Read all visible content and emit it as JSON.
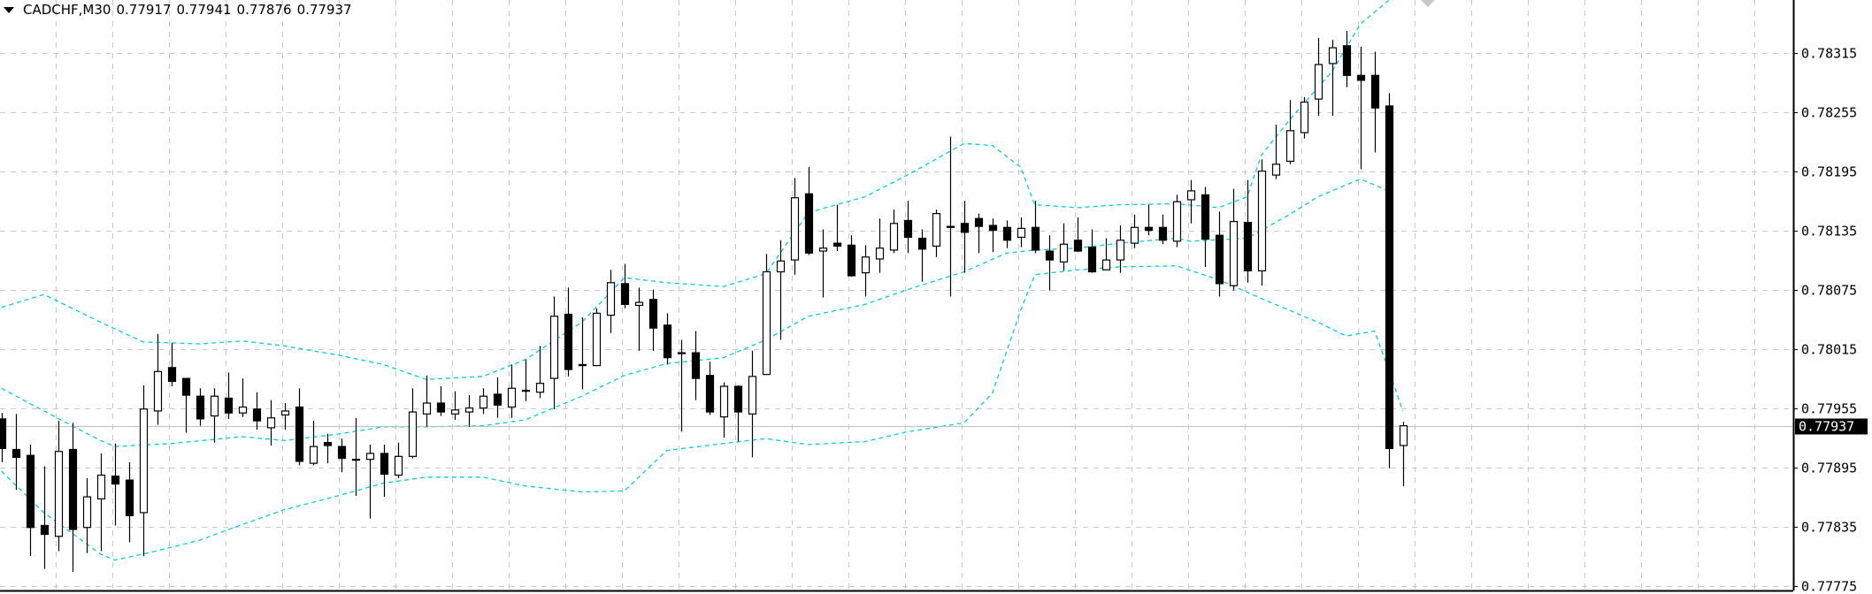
{
  "header": {
    "symbol_timeframe": "CADCHF,M30",
    "open": "0.77917",
    "high": "0.77941",
    "low": "0.77876",
    "close": "0.77937",
    "menu_icon": "triangle-down-icon"
  },
  "colors": {
    "background": "#ffffff",
    "grid": "#c8c8c8",
    "candle": "#000000",
    "bull_body": "#ffffff",
    "bear_body": "#000000",
    "bands": "#00d0d8",
    "price_line": "#c0c0c0",
    "price_label_bg": "#000000",
    "price_label_fg": "#ffffff"
  },
  "chart_data": {
    "type": "candlestick",
    "symbol": "CADCHF",
    "timeframe": "M30",
    "ylim": [
      0.77775,
      0.78345
    ],
    "grid": true,
    "y_ticks": [
      "0.78315",
      "0.78255",
      "0.78195",
      "0.78135",
      "0.78075",
      "0.78015",
      "0.77955",
      "0.77895",
      "0.77835",
      "0.77775"
    ],
    "current_price": "0.77937",
    "candles_ohlc": [
      [
        0.77944,
        0.7795,
        0.779,
        0.77914
      ],
      [
        0.77913,
        0.77949,
        0.77872,
        0.77905
      ],
      [
        0.77907,
        0.77918,
        0.77805,
        0.77834
      ],
      [
        0.77836,
        0.77896,
        0.77792,
        0.77827
      ],
      [
        0.77825,
        0.77942,
        0.7781,
        0.77911
      ],
      [
        0.77913,
        0.7794,
        0.77789,
        0.77832
      ],
      [
        0.77834,
        0.77884,
        0.77808,
        0.77865
      ],
      [
        0.77863,
        0.77909,
        0.7781,
        0.77887
      ],
      [
        0.77886,
        0.77919,
        0.77836,
        0.77878
      ],
      [
        0.77882,
        0.779,
        0.77819,
        0.77846
      ],
      [
        0.77849,
        0.77978,
        0.77805,
        0.77954
      ],
      [
        0.77952,
        0.7803,
        0.77938,
        0.77992
      ],
      [
        0.77996,
        0.78021,
        0.77977,
        0.77982
      ],
      [
        0.77985,
        0.77985,
        0.7793,
        0.77968
      ],
      [
        0.77967,
        0.77975,
        0.77937,
        0.77944
      ],
      [
        0.77947,
        0.77975,
        0.7792,
        0.77967
      ],
      [
        0.77965,
        0.77991,
        0.77944,
        0.7795
      ],
      [
        0.7795,
        0.77985,
        0.77946,
        0.77956
      ],
      [
        0.77954,
        0.77971,
        0.77933,
        0.77942
      ],
      [
        0.77935,
        0.77963,
        0.77917,
        0.77945
      ],
      [
        0.77948,
        0.7796,
        0.77933,
        0.77952
      ],
      [
        0.77956,
        0.77975,
        0.77897,
        0.77901
      ],
      [
        0.77899,
        0.77942,
        0.77897,
        0.77916
      ],
      [
        0.7792,
        0.77929,
        0.77899,
        0.77917
      ],
      [
        0.77916,
        0.77924,
        0.7789,
        0.77904
      ],
      [
        0.77903,
        0.77945,
        0.77866,
        0.77903
      ],
      [
        0.77903,
        0.77918,
        0.77843,
        0.77909
      ],
      [
        0.77909,
        0.77918,
        0.77865,
        0.77888
      ],
      [
        0.77887,
        0.7792,
        0.77884,
        0.77906
      ],
      [
        0.77906,
        0.77975,
        0.77904,
        0.77951
      ],
      [
        0.77949,
        0.77988,
        0.77936,
        0.7796
      ],
      [
        0.7796,
        0.77977,
        0.77947,
        0.77951
      ],
      [
        0.77949,
        0.77972,
        0.77943,
        0.77953
      ],
      [
        0.77951,
        0.77968,
        0.77936,
        0.77955
      ],
      [
        0.77955,
        0.77975,
        0.77949,
        0.77967
      ],
      [
        0.77969,
        0.77986,
        0.77945,
        0.77958
      ],
      [
        0.77956,
        0.77999,
        0.77945,
        0.77975
      ],
      [
        0.77973,
        0.78004,
        0.77962,
        0.77972
      ],
      [
        0.77971,
        0.78018,
        0.77965,
        0.7798
      ],
      [
        0.77985,
        0.78068,
        0.77954,
        0.78048
      ],
      [
        0.7805,
        0.78077,
        0.77987,
        0.77994
      ],
      [
        0.77999,
        0.78047,
        0.77974,
        0.77998
      ],
      [
        0.77998,
        0.78056,
        0.77998,
        0.78051
      ],
      [
        0.78049,
        0.78095,
        0.78031,
        0.78082
      ],
      [
        0.78081,
        0.78101,
        0.78056,
        0.7806
      ],
      [
        0.78059,
        0.78077,
        0.78013,
        0.78062
      ],
      [
        0.78065,
        0.78075,
        0.78013,
        0.78036
      ],
      [
        0.78039,
        0.78051,
        0.77999,
        0.78006
      ],
      [
        0.78011,
        0.78024,
        0.77931,
        0.78011
      ],
      [
        0.78011,
        0.78033,
        0.77963,
        0.77985
      ],
      [
        0.77988,
        0.78002,
        0.77948,
        0.77951
      ],
      [
        0.77946,
        0.77981,
        0.77925,
        0.77977
      ],
      [
        0.77977,
        0.77978,
        0.77921,
        0.77951
      ],
      [
        0.77949,
        0.78013,
        0.77905,
        0.77987
      ],
      [
        0.77989,
        0.78111,
        0.77989,
        0.78093
      ],
      [
        0.78093,
        0.78125,
        0.78024,
        0.78104
      ],
      [
        0.78105,
        0.78188,
        0.7809,
        0.78168
      ],
      [
        0.78172,
        0.78199,
        0.7811,
        0.78112
      ],
      [
        0.78114,
        0.78136,
        0.78067,
        0.78117
      ],
      [
        0.78122,
        0.78161,
        0.78114,
        0.78119
      ],
      [
        0.7812,
        0.7813,
        0.78088,
        0.78089
      ],
      [
        0.78092,
        0.7812,
        0.78068,
        0.78108
      ],
      [
        0.78106,
        0.78147,
        0.78092,
        0.78117
      ],
      [
        0.78115,
        0.78156,
        0.78112,
        0.78142
      ],
      [
        0.78145,
        0.78165,
        0.78112,
        0.78128
      ],
      [
        0.78127,
        0.78136,
        0.78083,
        0.78116
      ],
      [
        0.78119,
        0.78156,
        0.78108,
        0.78152
      ],
      [
        0.78139,
        0.7823,
        0.78068,
        0.78138
      ],
      [
        0.78142,
        0.78165,
        0.78092,
        0.78133
      ],
      [
        0.78147,
        0.78152,
        0.78112,
        0.78139
      ],
      [
        0.7814,
        0.78147,
        0.78113,
        0.78135
      ],
      [
        0.78138,
        0.78145,
        0.78117,
        0.78125
      ],
      [
        0.78128,
        0.78148,
        0.78118,
        0.78137
      ],
      [
        0.78138,
        0.78165,
        0.78112,
        0.78115
      ],
      [
        0.78114,
        0.7813,
        0.78074,
        0.78105
      ],
      [
        0.78103,
        0.78142,
        0.78094,
        0.78121
      ],
      [
        0.78125,
        0.78148,
        0.78113,
        0.78114
      ],
      [
        0.78118,
        0.78136,
        0.78092,
        0.78093
      ],
      [
        0.78095,
        0.78127,
        0.78095,
        0.78105
      ],
      [
        0.78105,
        0.7814,
        0.78092,
        0.78125
      ],
      [
        0.78122,
        0.78151,
        0.78117,
        0.78138
      ],
      [
        0.78138,
        0.78161,
        0.7813,
        0.78135
      ],
      [
        0.78138,
        0.78151,
        0.78121,
        0.78125
      ],
      [
        0.78124,
        0.78171,
        0.78118,
        0.78164
      ],
      [
        0.78166,
        0.78186,
        0.78142,
        0.78175
      ],
      [
        0.78171,
        0.78179,
        0.78098,
        0.78126
      ],
      [
        0.7813,
        0.78154,
        0.78068,
        0.78081
      ],
      [
        0.78079,
        0.78177,
        0.78074,
        0.78144
      ],
      [
        0.78143,
        0.78186,
        0.78082,
        0.78094
      ],
      [
        0.78094,
        0.78207,
        0.78079,
        0.78195
      ],
      [
        0.78191,
        0.78242,
        0.78187,
        0.78202
      ],
      [
        0.78205,
        0.78267,
        0.78202,
        0.78236
      ],
      [
        0.78234,
        0.7827,
        0.78228,
        0.78265
      ],
      [
        0.78268,
        0.7833,
        0.78251,
        0.78303
      ],
      [
        0.78304,
        0.78328,
        0.78251,
        0.7832
      ],
      [
        0.78322,
        0.78337,
        0.7828,
        0.78292
      ],
      [
        0.78292,
        0.78321,
        0.78197,
        0.78287
      ],
      [
        0.78292,
        0.78316,
        0.78214,
        0.78259
      ],
      [
        0.78261,
        0.78274,
        0.77894,
        0.77914
      ],
      [
        0.77917,
        0.77941,
        0.77876,
        0.77937
      ]
    ],
    "bollinger_bands": {
      "upper": [
        [
          0,
          0.78057
        ],
        [
          3,
          0.7807
        ],
        [
          7,
          0.78042
        ],
        [
          10,
          0.78022
        ],
        [
          14,
          0.7802
        ],
        [
          17,
          0.78023
        ],
        [
          20,
          0.78018
        ],
        [
          24,
          0.78008
        ],
        [
          27,
          0.77999
        ],
        [
          30,
          0.77984
        ],
        [
          34,
          0.77987
        ],
        [
          37,
          0.78004
        ],
        [
          41,
          0.78042
        ],
        [
          44,
          0.78087
        ],
        [
          47,
          0.78082
        ],
        [
          51,
          0.78078
        ],
        [
          54,
          0.78091
        ],
        [
          57,
          0.78153
        ],
        [
          61,
          0.78169
        ],
        [
          64,
          0.78191
        ],
        [
          68,
          0.78223
        ],
        [
          70,
          0.78221
        ],
        [
          72,
          0.78199
        ],
        [
          73,
          0.78161
        ],
        [
          76,
          0.78158
        ],
        [
          79,
          0.78161
        ],
        [
          83,
          0.78162
        ],
        [
          86,
          0.78158
        ],
        [
          88,
          0.78169
        ],
        [
          89,
          0.78211
        ],
        [
          91,
          0.78247
        ],
        [
          94,
          0.78296
        ],
        [
          96,
          0.78344
        ],
        [
          98,
          0.78368
        ]
      ],
      "middle": [
        [
          0,
          0.77975
        ],
        [
          3,
          0.77952
        ],
        [
          7,
          0.77922
        ],
        [
          8,
          0.77916
        ],
        [
          12,
          0.77919
        ],
        [
          17,
          0.77926
        ],
        [
          20,
          0.77922
        ],
        [
          24,
          0.77929
        ],
        [
          27,
          0.77936
        ],
        [
          30,
          0.77936
        ],
        [
          34,
          0.77937
        ],
        [
          37,
          0.77943
        ],
        [
          41,
          0.77967
        ],
        [
          44,
          0.77988
        ],
        [
          47,
          0.78
        ],
        [
          51,
          0.78006
        ],
        [
          54,
          0.78024
        ],
        [
          57,
          0.78048
        ],
        [
          61,
          0.7806
        ],
        [
          64,
          0.78075
        ],
        [
          68,
          0.78093
        ],
        [
          71,
          0.78112
        ],
        [
          73,
          0.78115
        ],
        [
          76,
          0.78117
        ],
        [
          79,
          0.78122
        ],
        [
          83,
          0.78127
        ],
        [
          84,
          0.78124
        ],
        [
          88,
          0.78127
        ],
        [
          91,
          0.78151
        ],
        [
          93,
          0.78169
        ],
        [
          96,
          0.78187
        ],
        [
          98,
          0.78175
        ]
      ],
      "lower": [
        [
          0,
          0.77891
        ],
        [
          3,
          0.77849
        ],
        [
          7,
          0.77807
        ],
        [
          8,
          0.77801
        ],
        [
          10,
          0.77807
        ],
        [
          14,
          0.77821
        ],
        [
          17,
          0.77837
        ],
        [
          20,
          0.77852
        ],
        [
          24,
          0.77867
        ],
        [
          27,
          0.77879
        ],
        [
          30,
          0.77885
        ],
        [
          34,
          0.77885
        ],
        [
          37,
          0.77876
        ],
        [
          41,
          0.7787
        ],
        [
          44,
          0.77871
        ],
        [
          47,
          0.77912
        ],
        [
          51,
          0.77919
        ],
        [
          54,
          0.77924
        ],
        [
          57,
          0.77918
        ],
        [
          61,
          0.77921
        ],
        [
          64,
          0.77931
        ],
        [
          68,
          0.7794
        ],
        [
          70,
          0.7797
        ],
        [
          72,
          0.78054
        ],
        [
          73,
          0.7809
        ],
        [
          76,
          0.78095
        ],
        [
          79,
          0.78098
        ],
        [
          83,
          0.78099
        ],
        [
          86,
          0.78085
        ],
        [
          89,
          0.78066
        ],
        [
          93,
          0.78042
        ],
        [
          95,
          0.78028
        ],
        [
          97,
          0.78033
        ],
        [
          98,
          0.77994
        ],
        [
          99,
          0.77952
        ]
      ]
    }
  }
}
